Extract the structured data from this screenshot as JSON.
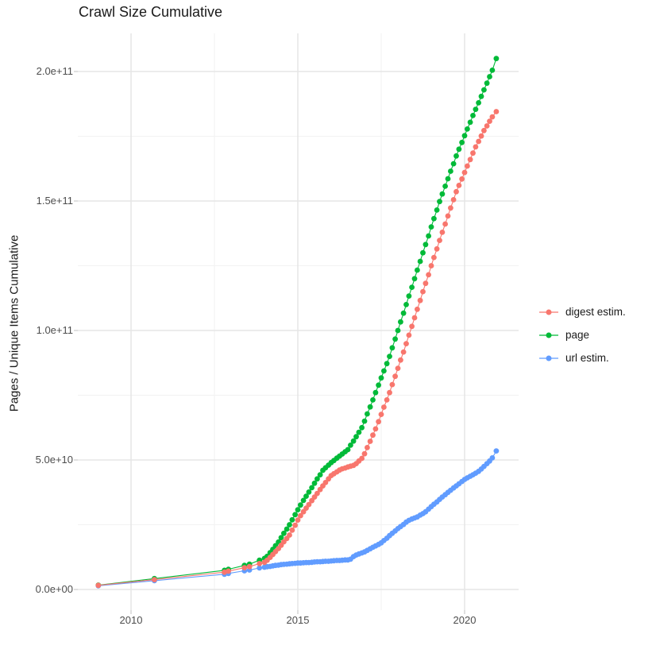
{
  "chart": {
    "title": "Crawl Size Cumulative",
    "y_axis_title": "Pages / Unique Items Cumulative"
  },
  "legend": {
    "position": "right",
    "items": [
      {
        "label": "digest estim.",
        "color": "#F8766D"
      },
      {
        "label": "page",
        "color": "#00BA38"
      },
      {
        "label": "url estim.",
        "color": "#619CFF"
      }
    ]
  },
  "chart_data": {
    "type": "scatter",
    "style": "points-with-line",
    "title": "Crawl Size Cumulative",
    "xlabel": "",
    "ylabel": "Pages / Unique Items Cumulative",
    "grid": true,
    "legend_position": "right",
    "x_unit": "year",
    "value_unit": "items, stored in billions (1e9)",
    "xlim": [
      2008.4,
      2021.6
    ],
    "ylim_billions": [
      -8,
      215
    ],
    "x_ticks": {
      "major": [
        2010,
        2015,
        2020
      ],
      "labels": [
        "2010",
        "2015",
        "2020"
      ],
      "minor": [
        2012.5,
        2017.5
      ]
    },
    "y_ticks": {
      "major_billions": [
        0,
        50,
        100,
        150,
        200
      ],
      "labels": [
        "0.0e+00",
        "5.0e+10",
        "1.0e+11",
        "1.5e+11",
        "2.0e+11"
      ],
      "minor_billions": [
        25,
        75,
        125,
        175
      ]
    },
    "series": [
      {
        "name": "digest estim.",
        "color": "#F8766D",
        "points_year_billions": [
          [
            2009.02,
            1.6
          ],
          [
            2010.7,
            3.8
          ],
          [
            2012.8,
            6.7
          ],
          [
            2012.92,
            7.1
          ],
          [
            2013.4,
            8.4
          ],
          [
            2013.55,
            8.8
          ],
          [
            2013.85,
            10.0
          ],
          [
            2014.0,
            10.5
          ],
          [
            2014.08,
            11.3
          ],
          [
            2014.17,
            12.4
          ],
          [
            2014.25,
            13.5
          ],
          [
            2014.33,
            14.6
          ],
          [
            2014.42,
            15.8
          ],
          [
            2014.5,
            17.1
          ],
          [
            2014.58,
            18.4
          ],
          [
            2014.67,
            19.7
          ],
          [
            2014.75,
            21.0
          ],
          [
            2014.83,
            22.9
          ],
          [
            2014.92,
            24.8
          ],
          [
            2015.0,
            26.8
          ],
          [
            2015.08,
            28.5
          ],
          [
            2015.17,
            30.0
          ],
          [
            2015.25,
            31.4
          ],
          [
            2015.33,
            32.8
          ],
          [
            2015.42,
            34.3
          ],
          [
            2015.5,
            35.7
          ],
          [
            2015.58,
            37.1
          ],
          [
            2015.67,
            38.6
          ],
          [
            2015.75,
            40.0
          ],
          [
            2015.83,
            41.3
          ],
          [
            2015.92,
            42.7
          ],
          [
            2016.0,
            44.0
          ],
          [
            2016.08,
            44.7
          ],
          [
            2016.17,
            45.4
          ],
          [
            2016.25,
            46.1
          ],
          [
            2016.33,
            46.6
          ],
          [
            2016.42,
            46.9
          ],
          [
            2016.5,
            47.3
          ],
          [
            2016.58,
            47.6
          ],
          [
            2016.67,
            47.9
          ],
          [
            2016.75,
            48.6
          ],
          [
            2016.83,
            49.6
          ],
          [
            2016.92,
            50.6
          ],
          [
            2017.0,
            52.4
          ],
          [
            2017.08,
            54.8
          ],
          [
            2017.17,
            57.2
          ],
          [
            2017.25,
            59.6
          ],
          [
            2017.33,
            62.0
          ],
          [
            2017.42,
            64.8
          ],
          [
            2017.5,
            67.6
          ],
          [
            2017.58,
            70.4
          ],
          [
            2017.67,
            73.2
          ],
          [
            2017.75,
            76.0
          ],
          [
            2017.83,
            79.1
          ],
          [
            2017.92,
            82.3
          ],
          [
            2018.0,
            85.4
          ],
          [
            2018.08,
            88.6
          ],
          [
            2018.17,
            91.7
          ],
          [
            2018.25,
            94.9
          ],
          [
            2018.33,
            98.2
          ],
          [
            2018.42,
            101.6
          ],
          [
            2018.5,
            104.9
          ],
          [
            2018.58,
            108.2
          ],
          [
            2018.67,
            111.6
          ],
          [
            2018.75,
            115.0
          ],
          [
            2018.83,
            118.2
          ],
          [
            2018.92,
            121.5
          ],
          [
            2019.0,
            125.0
          ],
          [
            2019.08,
            128.2
          ],
          [
            2019.17,
            131.5
          ],
          [
            2019.25,
            134.8
          ],
          [
            2019.33,
            137.9
          ],
          [
            2019.42,
            141.1
          ],
          [
            2019.5,
            144.2
          ],
          [
            2019.58,
            147.3
          ],
          [
            2019.67,
            150.5
          ],
          [
            2019.75,
            153.6
          ],
          [
            2019.83,
            156.0
          ],
          [
            2019.92,
            158.5
          ],
          [
            2020.0,
            161.0
          ],
          [
            2020.08,
            163.5
          ],
          [
            2020.17,
            166.0
          ],
          [
            2020.25,
            168.5
          ],
          [
            2020.33,
            170.9
          ],
          [
            2020.42,
            173.0
          ],
          [
            2020.5,
            175.1
          ],
          [
            2020.58,
            177.2
          ],
          [
            2020.67,
            179.0
          ],
          [
            2020.75,
            180.8
          ],
          [
            2020.83,
            182.5
          ],
          [
            2020.95,
            184.5
          ]
        ]
      },
      {
        "name": "page",
        "color": "#00BA38",
        "points_year_billions": [
          [
            2009.02,
            1.7
          ],
          [
            2010.7,
            4.2
          ],
          [
            2012.8,
            7.4
          ],
          [
            2012.92,
            7.8
          ],
          [
            2013.4,
            9.3
          ],
          [
            2013.55,
            9.8
          ],
          [
            2013.85,
            11.3
          ],
          [
            2014.0,
            12.0
          ],
          [
            2014.08,
            12.8
          ],
          [
            2014.17,
            14.2
          ],
          [
            2014.25,
            15.5
          ],
          [
            2014.33,
            16.9
          ],
          [
            2014.42,
            18.3
          ],
          [
            2014.5,
            20.0
          ],
          [
            2014.58,
            21.7
          ],
          [
            2014.67,
            23.3
          ],
          [
            2014.75,
            25.0
          ],
          [
            2014.83,
            26.9
          ],
          [
            2014.92,
            28.9
          ],
          [
            2015.0,
            30.8
          ],
          [
            2015.08,
            32.6
          ],
          [
            2015.17,
            34.4
          ],
          [
            2015.25,
            36.0
          ],
          [
            2015.33,
            37.6
          ],
          [
            2015.42,
            39.3
          ],
          [
            2015.5,
            41.0
          ],
          [
            2015.58,
            42.7
          ],
          [
            2015.67,
            44.3
          ],
          [
            2015.75,
            46.0
          ],
          [
            2015.83,
            47.0
          ],
          [
            2015.92,
            48.0
          ],
          [
            2016.0,
            49.0
          ],
          [
            2016.08,
            49.8
          ],
          [
            2016.17,
            50.7
          ],
          [
            2016.25,
            51.5
          ],
          [
            2016.33,
            52.3
          ],
          [
            2016.42,
            53.2
          ],
          [
            2016.5,
            54.0
          ],
          [
            2016.58,
            55.7
          ],
          [
            2016.67,
            57.3
          ],
          [
            2016.75,
            59.0
          ],
          [
            2016.83,
            60.7
          ],
          [
            2016.92,
            62.5
          ],
          [
            2017.0,
            65.0
          ],
          [
            2017.08,
            67.8
          ],
          [
            2017.17,
            70.5
          ],
          [
            2017.25,
            73.2
          ],
          [
            2017.33,
            76.0
          ],
          [
            2017.42,
            78.9
          ],
          [
            2017.5,
            81.7
          ],
          [
            2017.58,
            84.4
          ],
          [
            2017.67,
            87.2
          ],
          [
            2017.75,
            90.0
          ],
          [
            2017.83,
            93.3
          ],
          [
            2017.92,
            96.7
          ],
          [
            2018.0,
            100.0
          ],
          [
            2018.08,
            103.3
          ],
          [
            2018.17,
            106.7
          ],
          [
            2018.25,
            110.0
          ],
          [
            2018.33,
            113.3
          ],
          [
            2018.42,
            116.7
          ],
          [
            2018.5,
            120.0
          ],
          [
            2018.58,
            123.3
          ],
          [
            2018.67,
            126.7
          ],
          [
            2018.75,
            130.0
          ],
          [
            2018.83,
            133.2
          ],
          [
            2018.92,
            136.5
          ],
          [
            2019.0,
            140.0
          ],
          [
            2019.08,
            143.2
          ],
          [
            2019.17,
            146.5
          ],
          [
            2019.25,
            149.8
          ],
          [
            2019.33,
            152.7
          ],
          [
            2019.42,
            155.7
          ],
          [
            2019.5,
            158.6
          ],
          [
            2019.58,
            161.5
          ],
          [
            2019.67,
            164.4
          ],
          [
            2019.75,
            167.4
          ],
          [
            2019.83,
            170.0
          ],
          [
            2019.92,
            172.6
          ],
          [
            2020.0,
            175.2
          ],
          [
            2020.08,
            177.8
          ],
          [
            2020.17,
            180.4
          ],
          [
            2020.25,
            183.0
          ],
          [
            2020.33,
            185.4
          ],
          [
            2020.42,
            187.9
          ],
          [
            2020.5,
            190.4
          ],
          [
            2020.58,
            192.9
          ],
          [
            2020.67,
            195.5
          ],
          [
            2020.75,
            198.0
          ],
          [
            2020.83,
            200.5
          ],
          [
            2020.95,
            205.0
          ]
        ]
      },
      {
        "name": "url estim.",
        "color": "#619CFF",
        "points_year_billions": [
          [
            2009.02,
            1.4
          ],
          [
            2010.7,
            3.4
          ],
          [
            2012.8,
            5.9
          ],
          [
            2012.92,
            6.2
          ],
          [
            2013.4,
            7.2
          ],
          [
            2013.55,
            7.5
          ],
          [
            2013.85,
            8.3
          ],
          [
            2014.0,
            8.6
          ],
          [
            2014.08,
            8.8
          ],
          [
            2014.17,
            8.9
          ],
          [
            2014.25,
            9.1
          ],
          [
            2014.33,
            9.3
          ],
          [
            2014.42,
            9.4
          ],
          [
            2014.5,
            9.6
          ],
          [
            2014.58,
            9.7
          ],
          [
            2014.67,
            9.8
          ],
          [
            2014.75,
            9.9
          ],
          [
            2014.83,
            10.0
          ],
          [
            2014.92,
            10.1
          ],
          [
            2015.0,
            10.2
          ],
          [
            2015.08,
            10.2
          ],
          [
            2015.17,
            10.3
          ],
          [
            2015.25,
            10.4
          ],
          [
            2015.33,
            10.4
          ],
          [
            2015.42,
            10.5
          ],
          [
            2015.5,
            10.6
          ],
          [
            2015.58,
            10.7
          ],
          [
            2015.67,
            10.7
          ],
          [
            2015.75,
            10.8
          ],
          [
            2015.83,
            10.9
          ],
          [
            2015.92,
            10.9
          ],
          [
            2016.0,
            11.0
          ],
          [
            2016.08,
            11.1
          ],
          [
            2016.17,
            11.2
          ],
          [
            2016.25,
            11.2
          ],
          [
            2016.33,
            11.3
          ],
          [
            2016.42,
            11.4
          ],
          [
            2016.5,
            11.4
          ],
          [
            2016.58,
            11.7
          ],
          [
            2016.67,
            12.7
          ],
          [
            2016.75,
            13.3
          ],
          [
            2016.83,
            13.7
          ],
          [
            2016.92,
            14.1
          ],
          [
            2017.0,
            14.5
          ],
          [
            2017.08,
            15.1
          ],
          [
            2017.17,
            15.7
          ],
          [
            2017.25,
            16.3
          ],
          [
            2017.33,
            16.8
          ],
          [
            2017.42,
            17.4
          ],
          [
            2017.5,
            18.0
          ],
          [
            2017.58,
            18.9
          ],
          [
            2017.67,
            19.8
          ],
          [
            2017.75,
            20.8
          ],
          [
            2017.83,
            21.7
          ],
          [
            2017.92,
            22.6
          ],
          [
            2018.0,
            23.5
          ],
          [
            2018.08,
            24.3
          ],
          [
            2018.17,
            25.1
          ],
          [
            2018.25,
            26.0
          ],
          [
            2018.33,
            26.7
          ],
          [
            2018.42,
            27.2
          ],
          [
            2018.5,
            27.6
          ],
          [
            2018.58,
            28.0
          ],
          [
            2018.67,
            28.7
          ],
          [
            2018.75,
            29.3
          ],
          [
            2018.83,
            30.0
          ],
          [
            2018.92,
            31.0
          ],
          [
            2019.0,
            32.0
          ],
          [
            2019.08,
            32.9
          ],
          [
            2019.17,
            33.8
          ],
          [
            2019.25,
            34.8
          ],
          [
            2019.33,
            35.7
          ],
          [
            2019.42,
            36.6
          ],
          [
            2019.5,
            37.5
          ],
          [
            2019.58,
            38.3
          ],
          [
            2019.67,
            39.2
          ],
          [
            2019.75,
            40.0
          ],
          [
            2019.83,
            40.8
          ],
          [
            2019.92,
            41.7
          ],
          [
            2020.0,
            42.5
          ],
          [
            2020.08,
            43.1
          ],
          [
            2020.17,
            43.7
          ],
          [
            2020.25,
            44.3
          ],
          [
            2020.33,
            44.9
          ],
          [
            2020.42,
            45.6
          ],
          [
            2020.5,
            46.5
          ],
          [
            2020.58,
            47.5
          ],
          [
            2020.67,
            48.6
          ],
          [
            2020.75,
            49.6
          ],
          [
            2020.83,
            50.8
          ],
          [
            2020.95,
            53.5
          ]
        ]
      }
    ]
  }
}
